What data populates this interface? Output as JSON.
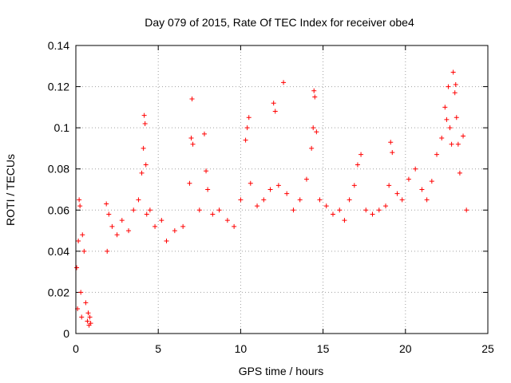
{
  "chart_data": {
    "type": "scatter",
    "title": "Day 079 of 2015, Rate Of TEC Index for receiver obe4",
    "xlabel": "GPS time / hours",
    "ylabel": "ROTI / TECUs",
    "xlim": [
      0,
      25
    ],
    "ylim": [
      0,
      0.14
    ],
    "x_ticks": [
      0,
      5,
      10,
      15,
      20,
      25
    ],
    "x_tick_labels": [
      "0",
      "5",
      "10",
      "15",
      "20",
      "25"
    ],
    "y_ticks": [
      0,
      0.02,
      0.04,
      0.06,
      0.08,
      0.1,
      0.12,
      0.14
    ],
    "y_tick_labels": [
      "0",
      "0.02",
      "0.04",
      "0.06",
      "0.08",
      "0.1",
      "0.12",
      "0.14"
    ],
    "grid": true,
    "marker": "+",
    "series": [
      {
        "name": "ROTI",
        "color": "#ff0000",
        "x": [
          0.05,
          0.1,
          0.15,
          0.2,
          0.25,
          0.3,
          0.35,
          0.4,
          0.5,
          0.6,
          0.7,
          0.75,
          0.8,
          0.85,
          0.9,
          1.85,
          1.9,
          2.0,
          2.2,
          2.5,
          2.8,
          3.2,
          3.5,
          3.8,
          4.0,
          4.1,
          4.15,
          4.2,
          4.25,
          4.3,
          4.5,
          4.8,
          5.2,
          5.5,
          6.0,
          6.5,
          6.9,
          7.0,
          7.05,
          7.1,
          7.5,
          7.8,
          7.9,
          8.0,
          8.3,
          8.7,
          9.2,
          9.6,
          10.0,
          10.3,
          10.4,
          10.5,
          10.6,
          11.0,
          11.4,
          11.8,
          12.0,
          12.1,
          12.3,
          12.6,
          12.8,
          13.2,
          13.6,
          14.0,
          14.3,
          14.4,
          14.45,
          14.5,
          14.6,
          14.8,
          15.2,
          15.6,
          16.0,
          16.3,
          16.6,
          16.9,
          17.1,
          17.3,
          17.6,
          18.0,
          18.4,
          18.8,
          19.0,
          19.1,
          19.2,
          19.5,
          19.8,
          20.2,
          20.6,
          21.0,
          21.3,
          21.6,
          21.9,
          22.2,
          22.4,
          22.5,
          22.6,
          22.7,
          22.8,
          22.9,
          23.0,
          23.05,
          23.1,
          23.2,
          23.3,
          23.5,
          23.7
        ],
        "y": [
          0.032,
          0.012,
          0.045,
          0.065,
          0.062,
          0.02,
          0.008,
          0.048,
          0.04,
          0.015,
          0.006,
          0.01,
          0.004,
          0.008,
          0.005,
          0.063,
          0.04,
          0.058,
          0.052,
          0.048,
          0.055,
          0.05,
          0.06,
          0.065,
          0.078,
          0.09,
          0.106,
          0.102,
          0.082,
          0.058,
          0.06,
          0.052,
          0.055,
          0.045,
          0.05,
          0.052,
          0.073,
          0.095,
          0.114,
          0.092,
          0.06,
          0.097,
          0.079,
          0.07,
          0.058,
          0.06,
          0.055,
          0.052,
          0.065,
          0.094,
          0.1,
          0.105,
          0.073,
          0.062,
          0.065,
          0.07,
          0.112,
          0.108,
          0.072,
          0.122,
          0.068,
          0.06,
          0.065,
          0.075,
          0.09,
          0.1,
          0.118,
          0.115,
          0.098,
          0.065,
          0.062,
          0.058,
          0.06,
          0.055,
          0.065,
          0.072,
          0.082,
          0.087,
          0.06,
          0.058,
          0.06,
          0.062,
          0.072,
          0.093,
          0.088,
          0.068,
          0.065,
          0.075,
          0.08,
          0.07,
          0.065,
          0.074,
          0.087,
          0.095,
          0.11,
          0.104,
          0.12,
          0.1,
          0.092,
          0.127,
          0.117,
          0.121,
          0.105,
          0.092,
          0.078,
          0.096,
          0.06
        ]
      }
    ]
  }
}
